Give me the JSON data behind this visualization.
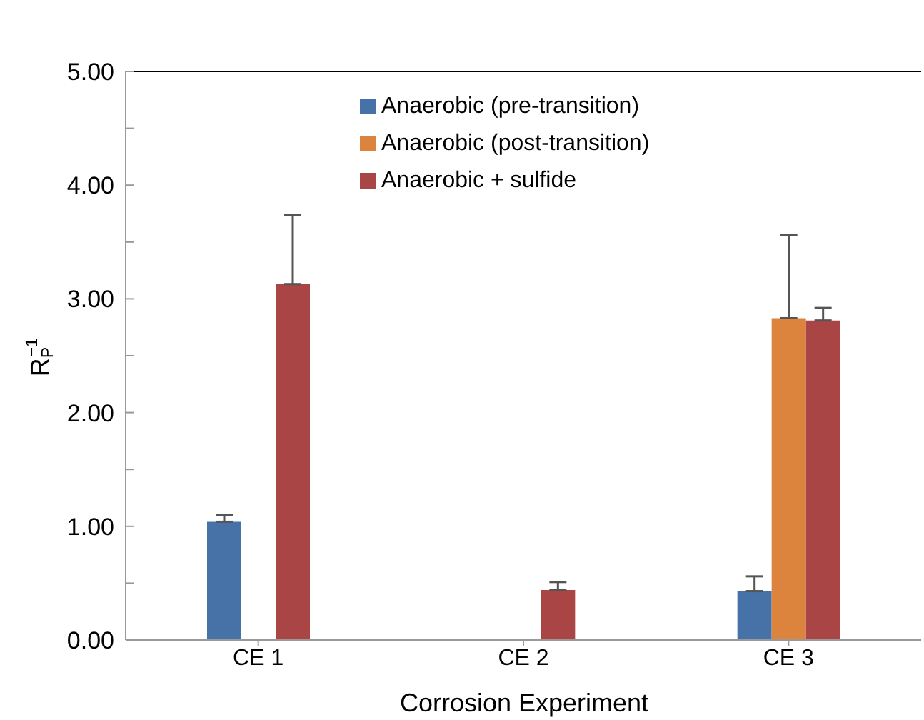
{
  "chart_data": {
    "type": "bar",
    "xlabel": "Corrosion Experiment",
    "ylabel": "R$_{P}$$^{−1}$",
    "categories": [
      "CE 1",
      "CE 2",
      "CE 3"
    ],
    "series": [
      {
        "name": "Anaerobic (pre-transition)",
        "color": "#4672a8",
        "values": [
          1.04,
          null,
          0.43
        ],
        "errors": [
          [
            1.04,
            1.1
          ],
          null,
          [
            0.43,
            0.56
          ]
        ]
      },
      {
        "name": "Anaerobic (post-transition)",
        "color": "#dc843d",
        "values": [
          null,
          null,
          2.83
        ],
        "errors": [
          null,
          null,
          [
            2.83,
            3.56
          ]
        ]
      },
      {
        "name": "Anaerobic + sulfide",
        "color": "#a94545",
        "values": [
          3.13,
          0.44,
          2.81
        ],
        "errors": [
          [
            3.13,
            3.74
          ],
          [
            0.44,
            0.51
          ],
          [
            2.81,
            2.92
          ]
        ]
      }
    ],
    "ylim": [
      0,
      5
    ],
    "yticks": [
      {
        "value": 0,
        "label": "0.00"
      },
      {
        "value": 0.5,
        "label": null
      },
      {
        "value": 1,
        "label": "1.00"
      },
      {
        "value": 1.5,
        "label": null
      },
      {
        "value": 2,
        "label": "2.00"
      },
      {
        "value": 2.5,
        "label": null
      },
      {
        "value": 3,
        "label": "3.00"
      },
      {
        "value": 3.5,
        "label": null
      },
      {
        "value": 4,
        "label": "4.00"
      },
      {
        "value": 4.5,
        "label": null
      },
      {
        "value": 5,
        "label": "5.00"
      }
    ],
    "grid": false,
    "legend": "top"
  }
}
